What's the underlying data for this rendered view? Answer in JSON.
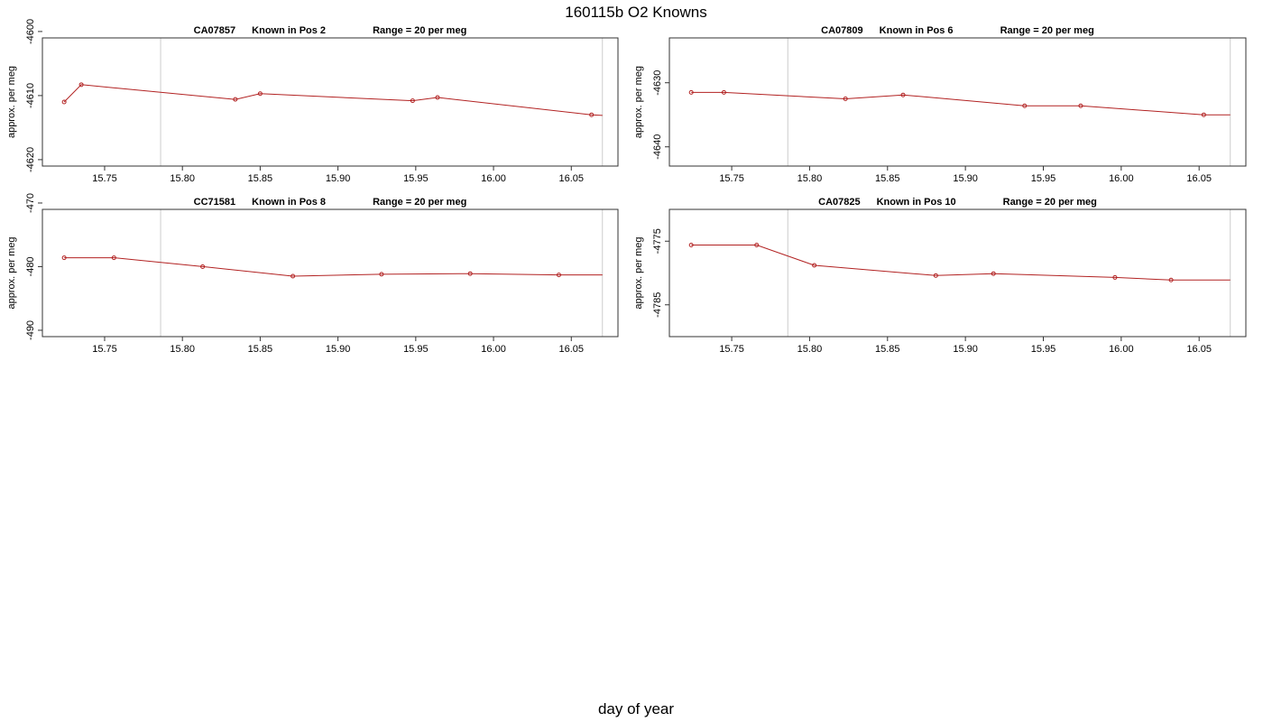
{
  "figure": {
    "title": "160115b   O2 Knowns",
    "xlabel": "day of year"
  },
  "chart_data": [
    {
      "type": "line",
      "title_parts": [
        "CA07857",
        "Known in Pos 2",
        "Range = 20 per meg"
      ],
      "ylabel": "approx. per meg",
      "xlim": [
        15.71,
        16.08
      ],
      "ylim": [
        -4621,
        -4601
      ],
      "xticks": [
        "15.75",
        "15.80",
        "15.85",
        "15.90",
        "15.95",
        "16.00",
        "16.05"
      ],
      "yticks": [
        "-4620",
        "-4610",
        "-4600"
      ],
      "vlines": [
        15.786,
        16.07
      ],
      "series": [
        {
          "color": "#b22222",
          "x": [
            15.724,
            15.735,
            15.834,
            15.85,
            15.948,
            15.964,
            16.063,
            16.07
          ],
          "y": [
            -4611.0,
            -4608.3,
            -4610.6,
            -4609.7,
            -4610.8,
            -4610.3,
            -4613.0,
            -4613.1
          ]
        }
      ]
    },
    {
      "type": "line",
      "title_parts": [
        "CA07809",
        "Known in Pos 6",
        "Range = 20 per meg"
      ],
      "ylabel": "approx. per meg",
      "xlim": [
        15.71,
        16.08
      ],
      "ylim": [
        -4643,
        -4623
      ],
      "xticks": [
        "15.75",
        "15.80",
        "15.85",
        "15.90",
        "15.95",
        "16.00",
        "16.05"
      ],
      "yticks": [
        "-4640",
        "-4630"
      ],
      "vlines": [
        15.786,
        16.07
      ],
      "series": [
        {
          "color": "#b22222",
          "x": [
            15.724,
            15.745,
            15.823,
            15.86,
            15.938,
            15.974,
            16.053,
            16.07
          ],
          "y": [
            -4631.5,
            -4631.5,
            -4632.5,
            -4631.9,
            -4633.6,
            -4633.6,
            -4635.0,
            -4635.0
          ]
        }
      ]
    },
    {
      "type": "line",
      "title_parts": [
        "CC71581",
        "Known in Pos 8",
        "Range = 20 per meg"
      ],
      "ylabel": "approx. per meg",
      "xlim": [
        15.71,
        16.08
      ],
      "ylim": [
        -491,
        -471
      ],
      "xticks": [
        "15.75",
        "15.80",
        "15.85",
        "15.90",
        "15.95",
        "16.00",
        "16.05"
      ],
      "yticks": [
        "-490",
        "-480",
        "-470"
      ],
      "vlines": [
        15.786,
        16.07
      ],
      "series": [
        {
          "color": "#b22222",
          "x": [
            15.724,
            15.756,
            15.813,
            15.871,
            15.928,
            15.985,
            16.042,
            16.07
          ],
          "y": [
            -478.6,
            -478.6,
            -480.0,
            -481.5,
            -481.2,
            -481.1,
            -481.3,
            -481.3
          ]
        }
      ]
    },
    {
      "type": "line",
      "title_parts": [
        "CA07825",
        "Known in Pos 10",
        "Range = 20 per meg"
      ],
      "ylabel": "approx. per meg",
      "xlim": [
        15.71,
        16.08
      ],
      "ylim": [
        -4790,
        -4770
      ],
      "xticks": [
        "15.75",
        "15.80",
        "15.85",
        "15.90",
        "15.95",
        "16.00",
        "16.05"
      ],
      "yticks": [
        "-4785",
        "-4775"
      ],
      "vlines": [
        15.786,
        16.07
      ],
      "series": [
        {
          "color": "#b22222",
          "x": [
            15.724,
            15.766,
            15.803,
            15.881,
            15.918,
            15.996,
            16.032,
            16.07
          ],
          "y": [
            -4775.6,
            -4775.6,
            -4778.8,
            -4780.4,
            -4780.1,
            -4780.7,
            -4781.1,
            -4781.1
          ]
        }
      ]
    }
  ]
}
